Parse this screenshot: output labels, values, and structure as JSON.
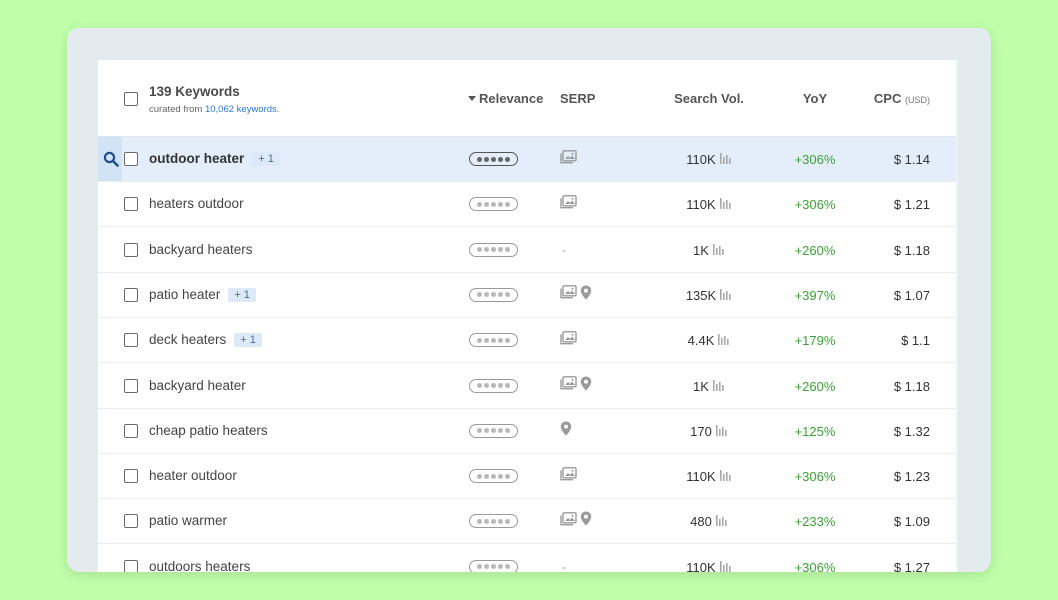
{
  "header": {
    "keyword_count": "139 Keywords",
    "curated_prefix": "curated from ",
    "curated_link": "10,062 keywords",
    "curated_suffix": ".",
    "col_relevance": "Relevance",
    "col_serp": "SERP",
    "col_search_vol": "Search Vol.",
    "col_yoy": "YoY",
    "col_cpc": "CPC",
    "col_cpc_unit": "(USD)"
  },
  "colors": {
    "background": "#bfffa9",
    "selected_row": "#e3eefa",
    "yoy_positive": "#3aa435",
    "link": "#2b7bd6"
  },
  "rows": [
    {
      "keyword": "outdoor heater",
      "badge": "+ 1",
      "serp": [
        "image-icon"
      ],
      "vol": "110K",
      "yoy": "+306%",
      "cpc": "$ 1.14",
      "selected": true
    },
    {
      "keyword": "heaters outdoor",
      "badge": "",
      "serp": [
        "image-icon"
      ],
      "vol": "110K",
      "yoy": "+306%",
      "cpc": "$ 1.21"
    },
    {
      "keyword": "backyard heaters",
      "badge": "",
      "serp": [],
      "vol": "1K",
      "yoy": "+260%",
      "cpc": "$ 1.18"
    },
    {
      "keyword": "patio heater",
      "badge": "+ 1",
      "serp": [
        "image-icon",
        "map-pin-icon"
      ],
      "vol": "135K",
      "yoy": "+397%",
      "cpc": "$ 1.07"
    },
    {
      "keyword": "deck heaters",
      "badge": "+ 1",
      "serp": [
        "image-icon"
      ],
      "vol": "4.4K",
      "yoy": "+179%",
      "cpc": "$ 1.1"
    },
    {
      "keyword": "backyard heater",
      "badge": "",
      "serp": [
        "image-icon",
        "map-pin-icon"
      ],
      "vol": "1K",
      "yoy": "+260%",
      "cpc": "$ 1.18"
    },
    {
      "keyword": "cheap patio heaters",
      "badge": "",
      "serp": [
        "map-pin-icon"
      ],
      "vol": "170",
      "yoy": "+125%",
      "cpc": "$ 1.32"
    },
    {
      "keyword": "heater outdoor",
      "badge": "",
      "serp": [
        "image-icon"
      ],
      "vol": "110K",
      "yoy": "+306%",
      "cpc": "$ 1.23"
    },
    {
      "keyword": "patio warmer",
      "badge": "",
      "serp": [
        "image-icon",
        "map-pin-icon"
      ],
      "vol": "480",
      "yoy": "+233%",
      "cpc": "$ 1.09"
    },
    {
      "keyword": "outdoors heaters",
      "badge": "",
      "serp": [],
      "vol": "110K",
      "yoy": "+306%",
      "cpc": "$ 1.27"
    }
  ]
}
